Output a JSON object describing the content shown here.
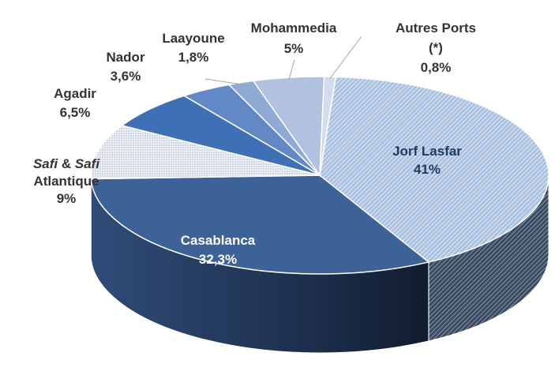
{
  "chart_data": {
    "type": "pie",
    "title": "",
    "slices": [
      {
        "name": "Jorf Lasfar",
        "label_lines": [
          "Jorf Lasfar",
          "41%"
        ],
        "value": 41,
        "color": "#9fb9dc",
        "pattern": "diag",
        "label_mode": "inside"
      },
      {
        "name": "Casablanca",
        "label_lines": [
          "Casablanca",
          "32,3%"
        ],
        "value": 32.3,
        "color": "#3d6298",
        "pattern": "none",
        "label_mode": "inside"
      },
      {
        "name": "Safi & Safi Atlantique",
        "label_lines": [
          "Safi & Safi",
          "Atlantique",
          "9%"
        ],
        "value": 9,
        "color": "#dfe6f0",
        "pattern": "dots",
        "label_mode": "outside"
      },
      {
        "name": "Agadir",
        "label_lines": [
          "Agadir",
          "6,5%"
        ],
        "value": 6.5,
        "color": "#3f70b5",
        "pattern": "none",
        "label_mode": "outside"
      },
      {
        "name": "Nador",
        "label_lines": [
          "Nador",
          "3,6%"
        ],
        "value": 3.6,
        "color": "#6288c6",
        "pattern": "none",
        "label_mode": "outside"
      },
      {
        "name": "Laayoune",
        "label_lines": [
          "Laayoune",
          "1,8%"
        ],
        "value": 1.8,
        "color": "#8faad6",
        "pattern": "none",
        "label_mode": "outside"
      },
      {
        "name": "Mohammedia",
        "label_lines": [
          "Mohammedia",
          "5%"
        ],
        "value": 5,
        "color": "#b1c1df",
        "pattern": "none",
        "label_mode": "outside"
      },
      {
        "name": "Autres Ports (*)",
        "label_lines": [
          "Autres Ports",
          "(*)",
          "0,8%"
        ],
        "value": 0.8,
        "color": "#d3dcec",
        "pattern": "none",
        "label_mode": "outside"
      }
    ]
  }
}
